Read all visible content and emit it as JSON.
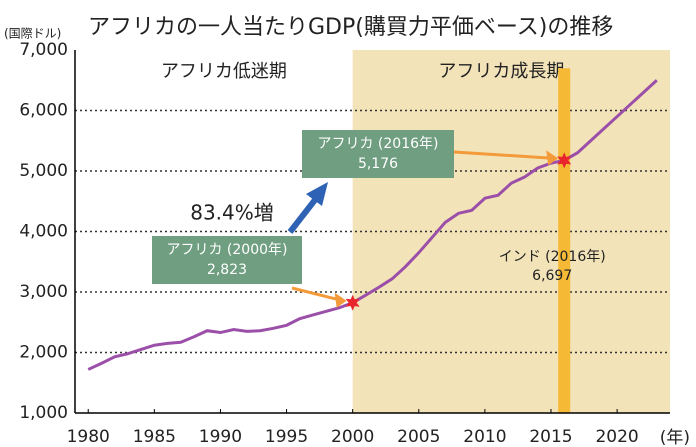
{
  "chart_data": {
    "type": "line",
    "title": "アフリカの一人当たりGDP(購買力平価ベース)の推移",
    "y_label": "(国際ドル)",
    "x_label": "(年)",
    "x": [
      1980,
      1981,
      1982,
      1983,
      1984,
      1985,
      1986,
      1987,
      1988,
      1989,
      1990,
      1991,
      1992,
      1993,
      1994,
      1995,
      1996,
      1997,
      1998,
      1999,
      2000,
      2001,
      2002,
      2003,
      2004,
      2005,
      2006,
      2007,
      2008,
      2009,
      2010,
      2011,
      2012,
      2013,
      2014,
      2015,
      2016,
      2017,
      2018,
      2019,
      2020,
      2021,
      2022,
      2023
    ],
    "series": [
      {
        "name": "アフリカ",
        "color": "#9b4fa8",
        "values": [
          1720,
          1820,
          1930,
          1980,
          2050,
          2120,
          2150,
          2170,
          2260,
          2360,
          2330,
          2380,
          2350,
          2360,
          2400,
          2450,
          2560,
          2620,
          2680,
          2740,
          2823,
          2950,
          3080,
          3220,
          3420,
          3650,
          3900,
          4150,
          4300,
          4350,
          4550,
          4600,
          4800,
          4900,
          5050,
          5130,
          5176,
          5300,
          5500,
          5700,
          5900,
          6100,
          6300,
          6500
        ]
      }
    ],
    "xlim": [
      1979,
      2024
    ],
    "ylim": [
      1000,
      7000
    ],
    "xticks": [
      1980,
      1985,
      1990,
      1995,
      2000,
      2005,
      2010,
      2015,
      2020
    ],
    "yticks": [
      {
        "value": 1000,
        "label": "1,000"
      },
      {
        "value": 2000,
        "label": "2,000"
      },
      {
        "value": 3000,
        "label": "3,000"
      },
      {
        "value": 4000,
        "label": "4,000"
      },
      {
        "value": 5000,
        "label": "5,000"
      },
      {
        "value": 6000,
        "label": "6,000"
      },
      {
        "value": 7000,
        "label": "7,000"
      }
    ],
    "grid": true,
    "periods": [
      {
        "label": "アフリカ低迷期"
      },
      {
        "label": "アフリカ成長期",
        "start": 2000,
        "color": "#f3e3b9"
      }
    ],
    "india": {
      "label": "インド (2016年)",
      "x": 2016,
      "value": 6697,
      "value_label": "6,697",
      "color": "#f5b935"
    },
    "callouts": [
      {
        "label": "アフリカ (2000年)",
        "index": 20,
        "value_label": "2,823"
      },
      {
        "label": "アフリカ (2016年)",
        "index": 36,
        "value_label": "5,176"
      }
    ],
    "growth_label": "83.4%増"
  }
}
